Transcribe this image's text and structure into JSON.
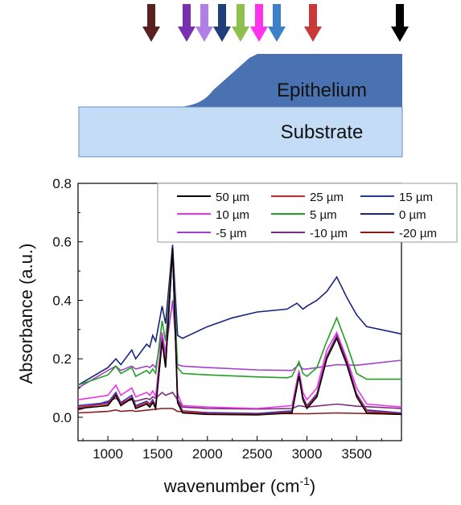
{
  "schematic": {
    "epithelium_label": "Epithelium",
    "substrate_label": "Substrate",
    "arrows": [
      {
        "color": "#5a1f1f"
      },
      {
        "color": "#7a2fb0"
      },
      {
        "color": "#b27ee8"
      },
      {
        "color": "#1f3e7a"
      },
      {
        "color": "#8fbf4d"
      },
      {
        "color": "#ff33ee"
      },
      {
        "color": "#3d7fc9"
      },
      {
        "color": "#c83a3a"
      },
      {
        "color": "#000000"
      }
    ]
  },
  "chart_data": {
    "type": "line",
    "xlabel": "wavenumber (cm-1)",
    "xlabel_main": "wavenumber (cm",
    "xlabel_sup": "-1",
    "xlabel_close": ")",
    "ylabel": "Absorbance (a.u.)",
    "xlim": [
      700,
      3950
    ],
    "ylim": [
      -0.08,
      0.8
    ],
    "xticks": [
      1000,
      1500,
      2000,
      2500,
      3000,
      3500
    ],
    "xtick_labels": [
      "1000",
      "1500",
      "2000",
      "2500",
      "3000",
      "3500"
    ],
    "yticks": [
      0.0,
      0.2,
      0.4,
      0.6,
      0.8
    ],
    "ytick_labels": [
      "0.0",
      "0.2",
      "0.4",
      "0.6",
      "0.8"
    ],
    "legend_position": "top-right",
    "series": [
      {
        "name": "50 µm",
        "color": "#000000",
        "points": [
          [
            700,
            0.03
          ],
          [
            1000,
            0.04
          ],
          [
            1080,
            0.075
          ],
          [
            1130,
            0.04
          ],
          [
            1240,
            0.065
          ],
          [
            1280,
            0.03
          ],
          [
            1390,
            0.045
          ],
          [
            1420,
            0.035
          ],
          [
            1450,
            0.05
          ],
          [
            1480,
            0.03
          ],
          [
            1545,
            0.26
          ],
          [
            1580,
            0.17
          ],
          [
            1650,
            0.58
          ],
          [
            1700,
            0.05
          ],
          [
            1750,
            0.015
          ],
          [
            2000,
            0.01
          ],
          [
            2500,
            0.008
          ],
          [
            2850,
            0.015
          ],
          [
            2920,
            0.14
          ],
          [
            2960,
            0.06
          ],
          [
            3000,
            0.03
          ],
          [
            3100,
            0.07
          ],
          [
            3200,
            0.2
          ],
          [
            3300,
            0.27
          ],
          [
            3400,
            0.18
          ],
          [
            3500,
            0.07
          ],
          [
            3600,
            0.015
          ],
          [
            3950,
            0.01
          ]
        ]
      },
      {
        "name": "25 µm",
        "color": "#e02020",
        "points": [
          [
            700,
            0.035
          ],
          [
            1000,
            0.045
          ],
          [
            1080,
            0.078
          ],
          [
            1130,
            0.045
          ],
          [
            1240,
            0.068
          ],
          [
            1280,
            0.035
          ],
          [
            1390,
            0.05
          ],
          [
            1420,
            0.04
          ],
          [
            1450,
            0.055
          ],
          [
            1480,
            0.035
          ],
          [
            1545,
            0.265
          ],
          [
            1580,
            0.175
          ],
          [
            1650,
            0.57
          ],
          [
            1700,
            0.055
          ],
          [
            1750,
            0.02
          ],
          [
            2000,
            0.013
          ],
          [
            2500,
            0.01
          ],
          [
            2850,
            0.018
          ],
          [
            2920,
            0.145
          ],
          [
            2960,
            0.065
          ],
          [
            3000,
            0.035
          ],
          [
            3100,
            0.075
          ],
          [
            3200,
            0.205
          ],
          [
            3300,
            0.275
          ],
          [
            3400,
            0.185
          ],
          [
            3500,
            0.075
          ],
          [
            3600,
            0.02
          ],
          [
            3950,
            0.012
          ]
        ]
      },
      {
        "name": "15 µm",
        "color": "#2233cc",
        "points": [
          [
            700,
            0.04
          ],
          [
            1000,
            0.05
          ],
          [
            1080,
            0.085
          ],
          [
            1130,
            0.05
          ],
          [
            1240,
            0.075
          ],
          [
            1280,
            0.04
          ],
          [
            1390,
            0.055
          ],
          [
            1420,
            0.045
          ],
          [
            1450,
            0.06
          ],
          [
            1480,
            0.04
          ],
          [
            1545,
            0.27
          ],
          [
            1580,
            0.18
          ],
          [
            1650,
            0.575
          ],
          [
            1700,
            0.06
          ],
          [
            1750,
            0.022
          ],
          [
            2000,
            0.016
          ],
          [
            2500,
            0.013
          ],
          [
            2850,
            0.022
          ],
          [
            2920,
            0.15
          ],
          [
            2960,
            0.07
          ],
          [
            3000,
            0.04
          ],
          [
            3100,
            0.08
          ],
          [
            3200,
            0.21
          ],
          [
            3300,
            0.28
          ],
          [
            3400,
            0.19
          ],
          [
            3500,
            0.08
          ],
          [
            3600,
            0.025
          ],
          [
            3950,
            0.015
          ]
        ]
      },
      {
        "name": "10 µm",
        "color": "#ee33ee",
        "points": [
          [
            700,
            0.06
          ],
          [
            1000,
            0.075
          ],
          [
            1080,
            0.11
          ],
          [
            1130,
            0.075
          ],
          [
            1240,
            0.1
          ],
          [
            1280,
            0.07
          ],
          [
            1390,
            0.085
          ],
          [
            1420,
            0.075
          ],
          [
            1450,
            0.09
          ],
          [
            1480,
            0.07
          ],
          [
            1545,
            0.29
          ],
          [
            1580,
            0.21
          ],
          [
            1650,
            0.57
          ],
          [
            1700,
            0.08
          ],
          [
            1750,
            0.04
          ],
          [
            2000,
            0.035
          ],
          [
            2500,
            0.03
          ],
          [
            2850,
            0.04
          ],
          [
            2920,
            0.16
          ],
          [
            2960,
            0.085
          ],
          [
            3000,
            0.06
          ],
          [
            3100,
            0.1
          ],
          [
            3200,
            0.23
          ],
          [
            3300,
            0.29
          ],
          [
            3400,
            0.2
          ],
          [
            3500,
            0.1
          ],
          [
            3600,
            0.045
          ],
          [
            3950,
            0.035
          ]
        ]
      },
      {
        "name": "5 µm",
        "color": "#22a022",
        "points": [
          [
            700,
            0.11
          ],
          [
            1000,
            0.145
          ],
          [
            1080,
            0.175
          ],
          [
            1130,
            0.15
          ],
          [
            1240,
            0.17
          ],
          [
            1280,
            0.14
          ],
          [
            1390,
            0.16
          ],
          [
            1420,
            0.15
          ],
          [
            1450,
            0.165
          ],
          [
            1480,
            0.15
          ],
          [
            1545,
            0.33
          ],
          [
            1580,
            0.26
          ],
          [
            1650,
            0.57
          ],
          [
            1700,
            0.17
          ],
          [
            1750,
            0.15
          ],
          [
            2000,
            0.145
          ],
          [
            2500,
            0.138
          ],
          [
            2800,
            0.135
          ],
          [
            2850,
            0.14
          ],
          [
            2920,
            0.19
          ],
          [
            2960,
            0.15
          ],
          [
            3000,
            0.14
          ],
          [
            3100,
            0.17
          ],
          [
            3200,
            0.26
          ],
          [
            3300,
            0.34
          ],
          [
            3400,
            0.25
          ],
          [
            3500,
            0.15
          ],
          [
            3600,
            0.13
          ],
          [
            3950,
            0.13
          ]
        ]
      },
      {
        "name": "0 µm",
        "color": "#1a237e",
        "points": [
          [
            700,
            0.11
          ],
          [
            1000,
            0.17
          ],
          [
            1080,
            0.2
          ],
          [
            1130,
            0.18
          ],
          [
            1240,
            0.23
          ],
          [
            1280,
            0.2
          ],
          [
            1390,
            0.25
          ],
          [
            1420,
            0.24
          ],
          [
            1450,
            0.28
          ],
          [
            1480,
            0.26
          ],
          [
            1545,
            0.38
          ],
          [
            1580,
            0.32
          ],
          [
            1650,
            0.59
          ],
          [
            1700,
            0.28
          ],
          [
            1750,
            0.27
          ],
          [
            2000,
            0.31
          ],
          [
            2250,
            0.34
          ],
          [
            2500,
            0.36
          ],
          [
            2800,
            0.37
          ],
          [
            2900,
            0.39
          ],
          [
            2960,
            0.37
          ],
          [
            3000,
            0.38
          ],
          [
            3100,
            0.4
          ],
          [
            3200,
            0.43
          ],
          [
            3300,
            0.48
          ],
          [
            3400,
            0.41
          ],
          [
            3500,
            0.35
          ],
          [
            3600,
            0.31
          ],
          [
            3950,
            0.285
          ]
        ]
      },
      {
        "name": "-5  µm",
        "color": "#a040d0",
        "points": [
          [
            700,
            0.1
          ],
          [
            1000,
            0.16
          ],
          [
            1080,
            0.175
          ],
          [
            1130,
            0.16
          ],
          [
            1240,
            0.175
          ],
          [
            1280,
            0.165
          ],
          [
            1390,
            0.175
          ],
          [
            1420,
            0.17
          ],
          [
            1450,
            0.18
          ],
          [
            1480,
            0.17
          ],
          [
            1545,
            0.29
          ],
          [
            1580,
            0.22
          ],
          [
            1650,
            0.4
          ],
          [
            1700,
            0.18
          ],
          [
            1750,
            0.175
          ],
          [
            2000,
            0.17
          ],
          [
            2500,
            0.162
          ],
          [
            2850,
            0.16
          ],
          [
            2920,
            0.18
          ],
          [
            2960,
            0.165
          ],
          [
            3000,
            0.165
          ],
          [
            3200,
            0.175
          ],
          [
            3300,
            0.18
          ],
          [
            3500,
            0.178
          ],
          [
            3950,
            0.195
          ]
        ]
      },
      {
        "name": "-10 µm",
        "color": "#7a2a7a",
        "points": [
          [
            700,
            0.025
          ],
          [
            1000,
            0.055
          ],
          [
            1080,
            0.065
          ],
          [
            1130,
            0.05
          ],
          [
            1240,
            0.06
          ],
          [
            1280,
            0.055
          ],
          [
            1390,
            0.065
          ],
          [
            1420,
            0.06
          ],
          [
            1450,
            0.07
          ],
          [
            1480,
            0.065
          ],
          [
            1545,
            0.085
          ],
          [
            1580,
            0.075
          ],
          [
            1650,
            0.085
          ],
          [
            1700,
            0.06
          ],
          [
            1750,
            0.035
          ],
          [
            2000,
            0.03
          ],
          [
            2500,
            0.028
          ],
          [
            2850,
            0.03
          ],
          [
            2920,
            0.04
          ],
          [
            3000,
            0.035
          ],
          [
            3300,
            0.045
          ],
          [
            3500,
            0.038
          ],
          [
            3950,
            0.03
          ]
        ]
      },
      {
        "name": "-20 µm",
        "color": "#8b1a1a",
        "points": [
          [
            700,
            0.015
          ],
          [
            1000,
            0.02
          ],
          [
            1080,
            0.025
          ],
          [
            1130,
            0.02
          ],
          [
            1240,
            0.023
          ],
          [
            1280,
            0.02
          ],
          [
            1545,
            0.03
          ],
          [
            1650,
            0.03
          ],
          [
            1700,
            0.02
          ],
          [
            2000,
            0.015
          ],
          [
            2500,
            0.013
          ],
          [
            3000,
            0.012
          ],
          [
            3300,
            0.015
          ],
          [
            3950,
            0.01
          ]
        ]
      }
    ]
  }
}
